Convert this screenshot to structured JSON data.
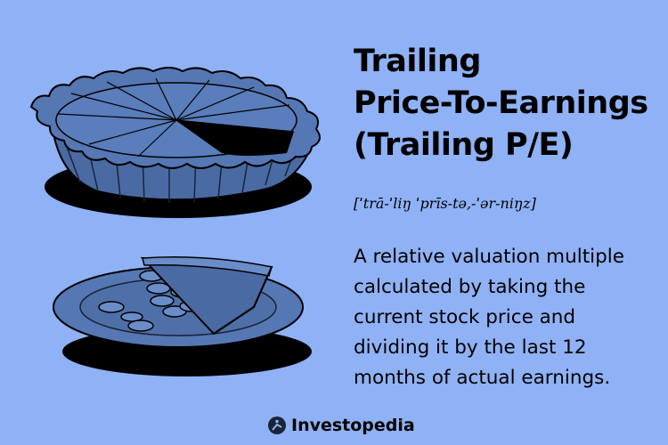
{
  "title": {
    "lines": [
      "Trailing",
      "Price-To-Earnings",
      "(Trailing P/E)"
    ]
  },
  "pronunciation": "[ˈtrā-ˈliŋ ˈprīs-tə,-ˈər-niŋz]",
  "definition": {
    "lines": [
      "A relative valuation multiple",
      "calculated by taking the",
      "current stock price and",
      "dividing it by the last 12",
      "months of actual earnings."
    ]
  },
  "brand": {
    "name": "Investopedia",
    "icon": "investopedia-logo-icon"
  },
  "colors": {
    "background": "#8fb1f5",
    "illustration_fill": "#4f6fa8",
    "illustration_dark": "#1a2438"
  }
}
